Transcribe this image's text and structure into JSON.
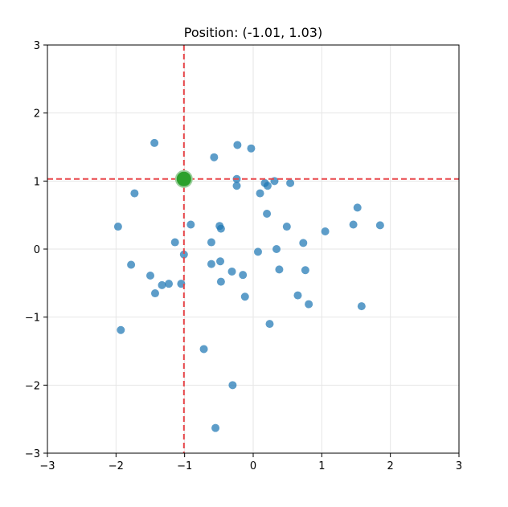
{
  "chart_data": {
    "type": "scatter",
    "title": "Position: (-1.01, 1.03)",
    "xlabel": "",
    "ylabel": "",
    "xlim": [
      -3,
      3
    ],
    "ylim": [
      -3,
      3
    ],
    "xticks": [
      -3,
      -2,
      -1,
      0,
      1,
      2,
      3
    ],
    "yticks": [
      -3,
      -2,
      -1,
      0,
      1,
      2,
      3
    ],
    "xtick_labels": [
      "−3",
      "−2",
      "−1",
      "0",
      "1",
      "2",
      "3"
    ],
    "ytick_labels": [
      "−3",
      "−2",
      "−1",
      "0",
      "1",
      "2",
      "3"
    ],
    "grid": true,
    "legend": "none",
    "colors": {
      "points": "#1f77b4",
      "marker": "#2ca02c",
      "crosshair": "#e8474a",
      "grid": "#e6e6e6"
    },
    "points": [
      {
        "x": -1.44,
        "y": 1.56
      },
      {
        "x": -0.57,
        "y": 1.35
      },
      {
        "x": -0.23,
        "y": 1.53
      },
      {
        "x": -0.03,
        "y": 1.48
      },
      {
        "x": -1.73,
        "y": 0.82
      },
      {
        "x": -0.24,
        "y": 1.03
      },
      {
        "x": -0.24,
        "y": 0.93
      },
      {
        "x": 0.1,
        "y": 0.82
      },
      {
        "x": 0.17,
        "y": 0.97
      },
      {
        "x": 0.21,
        "y": 0.93
      },
      {
        "x": 0.31,
        "y": 1.0
      },
      {
        "x": 0.54,
        "y": 0.97
      },
      {
        "x": 0.2,
        "y": 0.52
      },
      {
        "x": -1.97,
        "y": 0.33
      },
      {
        "x": -0.91,
        "y": 0.36
      },
      {
        "x": -0.49,
        "y": 0.34
      },
      {
        "x": -0.47,
        "y": 0.3
      },
      {
        "x": -1.14,
        "y": 0.1
      },
      {
        "x": -1.01,
        "y": -0.08
      },
      {
        "x": -0.61,
        "y": 0.1
      },
      {
        "x": -0.61,
        "y": -0.22
      },
      {
        "x": -0.48,
        "y": -0.18
      },
      {
        "x": -0.47,
        "y": -0.48
      },
      {
        "x": -0.31,
        "y": -0.33
      },
      {
        "x": -0.15,
        "y": -0.38
      },
      {
        "x": -0.12,
        "y": -0.7
      },
      {
        "x": 0.07,
        "y": -0.04
      },
      {
        "x": 0.34,
        "y": 0.0
      },
      {
        "x": 0.38,
        "y": -0.3
      },
      {
        "x": 0.49,
        "y": 0.33
      },
      {
        "x": 0.73,
        "y": 0.09
      },
      {
        "x": 0.76,
        "y": -0.31
      },
      {
        "x": 0.65,
        "y": -0.68
      },
      {
        "x": 0.81,
        "y": -0.81
      },
      {
        "x": 1.05,
        "y": 0.26
      },
      {
        "x": 1.46,
        "y": 0.36
      },
      {
        "x": 1.52,
        "y": 0.61
      },
      {
        "x": 1.85,
        "y": 0.35
      },
      {
        "x": 1.58,
        "y": -0.84
      },
      {
        "x": -1.78,
        "y": -0.23
      },
      {
        "x": -1.5,
        "y": -0.39
      },
      {
        "x": -1.43,
        "y": -0.65
      },
      {
        "x": -1.33,
        "y": -0.53
      },
      {
        "x": -1.23,
        "y": -0.51
      },
      {
        "x": -1.05,
        "y": -0.51
      },
      {
        "x": -1.93,
        "y": -1.19
      },
      {
        "x": 0.24,
        "y": -1.1
      },
      {
        "x": -0.72,
        "y": -1.47
      },
      {
        "x": -0.3,
        "y": -2.0
      },
      {
        "x": -0.55,
        "y": -2.63
      }
    ],
    "position": {
      "x": -1.01,
      "y": 1.03
    }
  }
}
